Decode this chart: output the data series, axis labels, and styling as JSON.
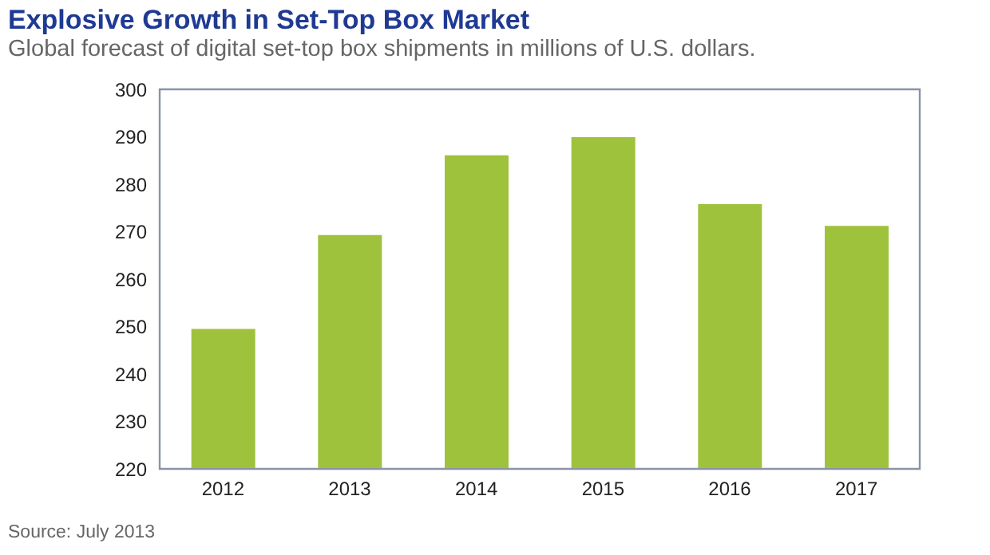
{
  "chart_data": {
    "type": "bar",
    "title": "Explosive Growth in Set-Top Box Market",
    "subtitle": "Global forecast of digital set-top box shipments in millions of U.S. dollars.",
    "annotations": [
      "Source: July 2013"
    ],
    "categories": [
      "2012",
      "2013",
      "2014",
      "2015",
      "2016",
      "2017"
    ],
    "values": [
      249.5,
      269.3,
      286.1,
      289.9,
      275.8,
      271.2
    ],
    "color": "#9fc23c",
    "ylim": [
      220,
      300
    ],
    "yticks": [
      220,
      230,
      240,
      250,
      260,
      270,
      280,
      290,
      300
    ],
    "grid": false,
    "legend": false
  }
}
